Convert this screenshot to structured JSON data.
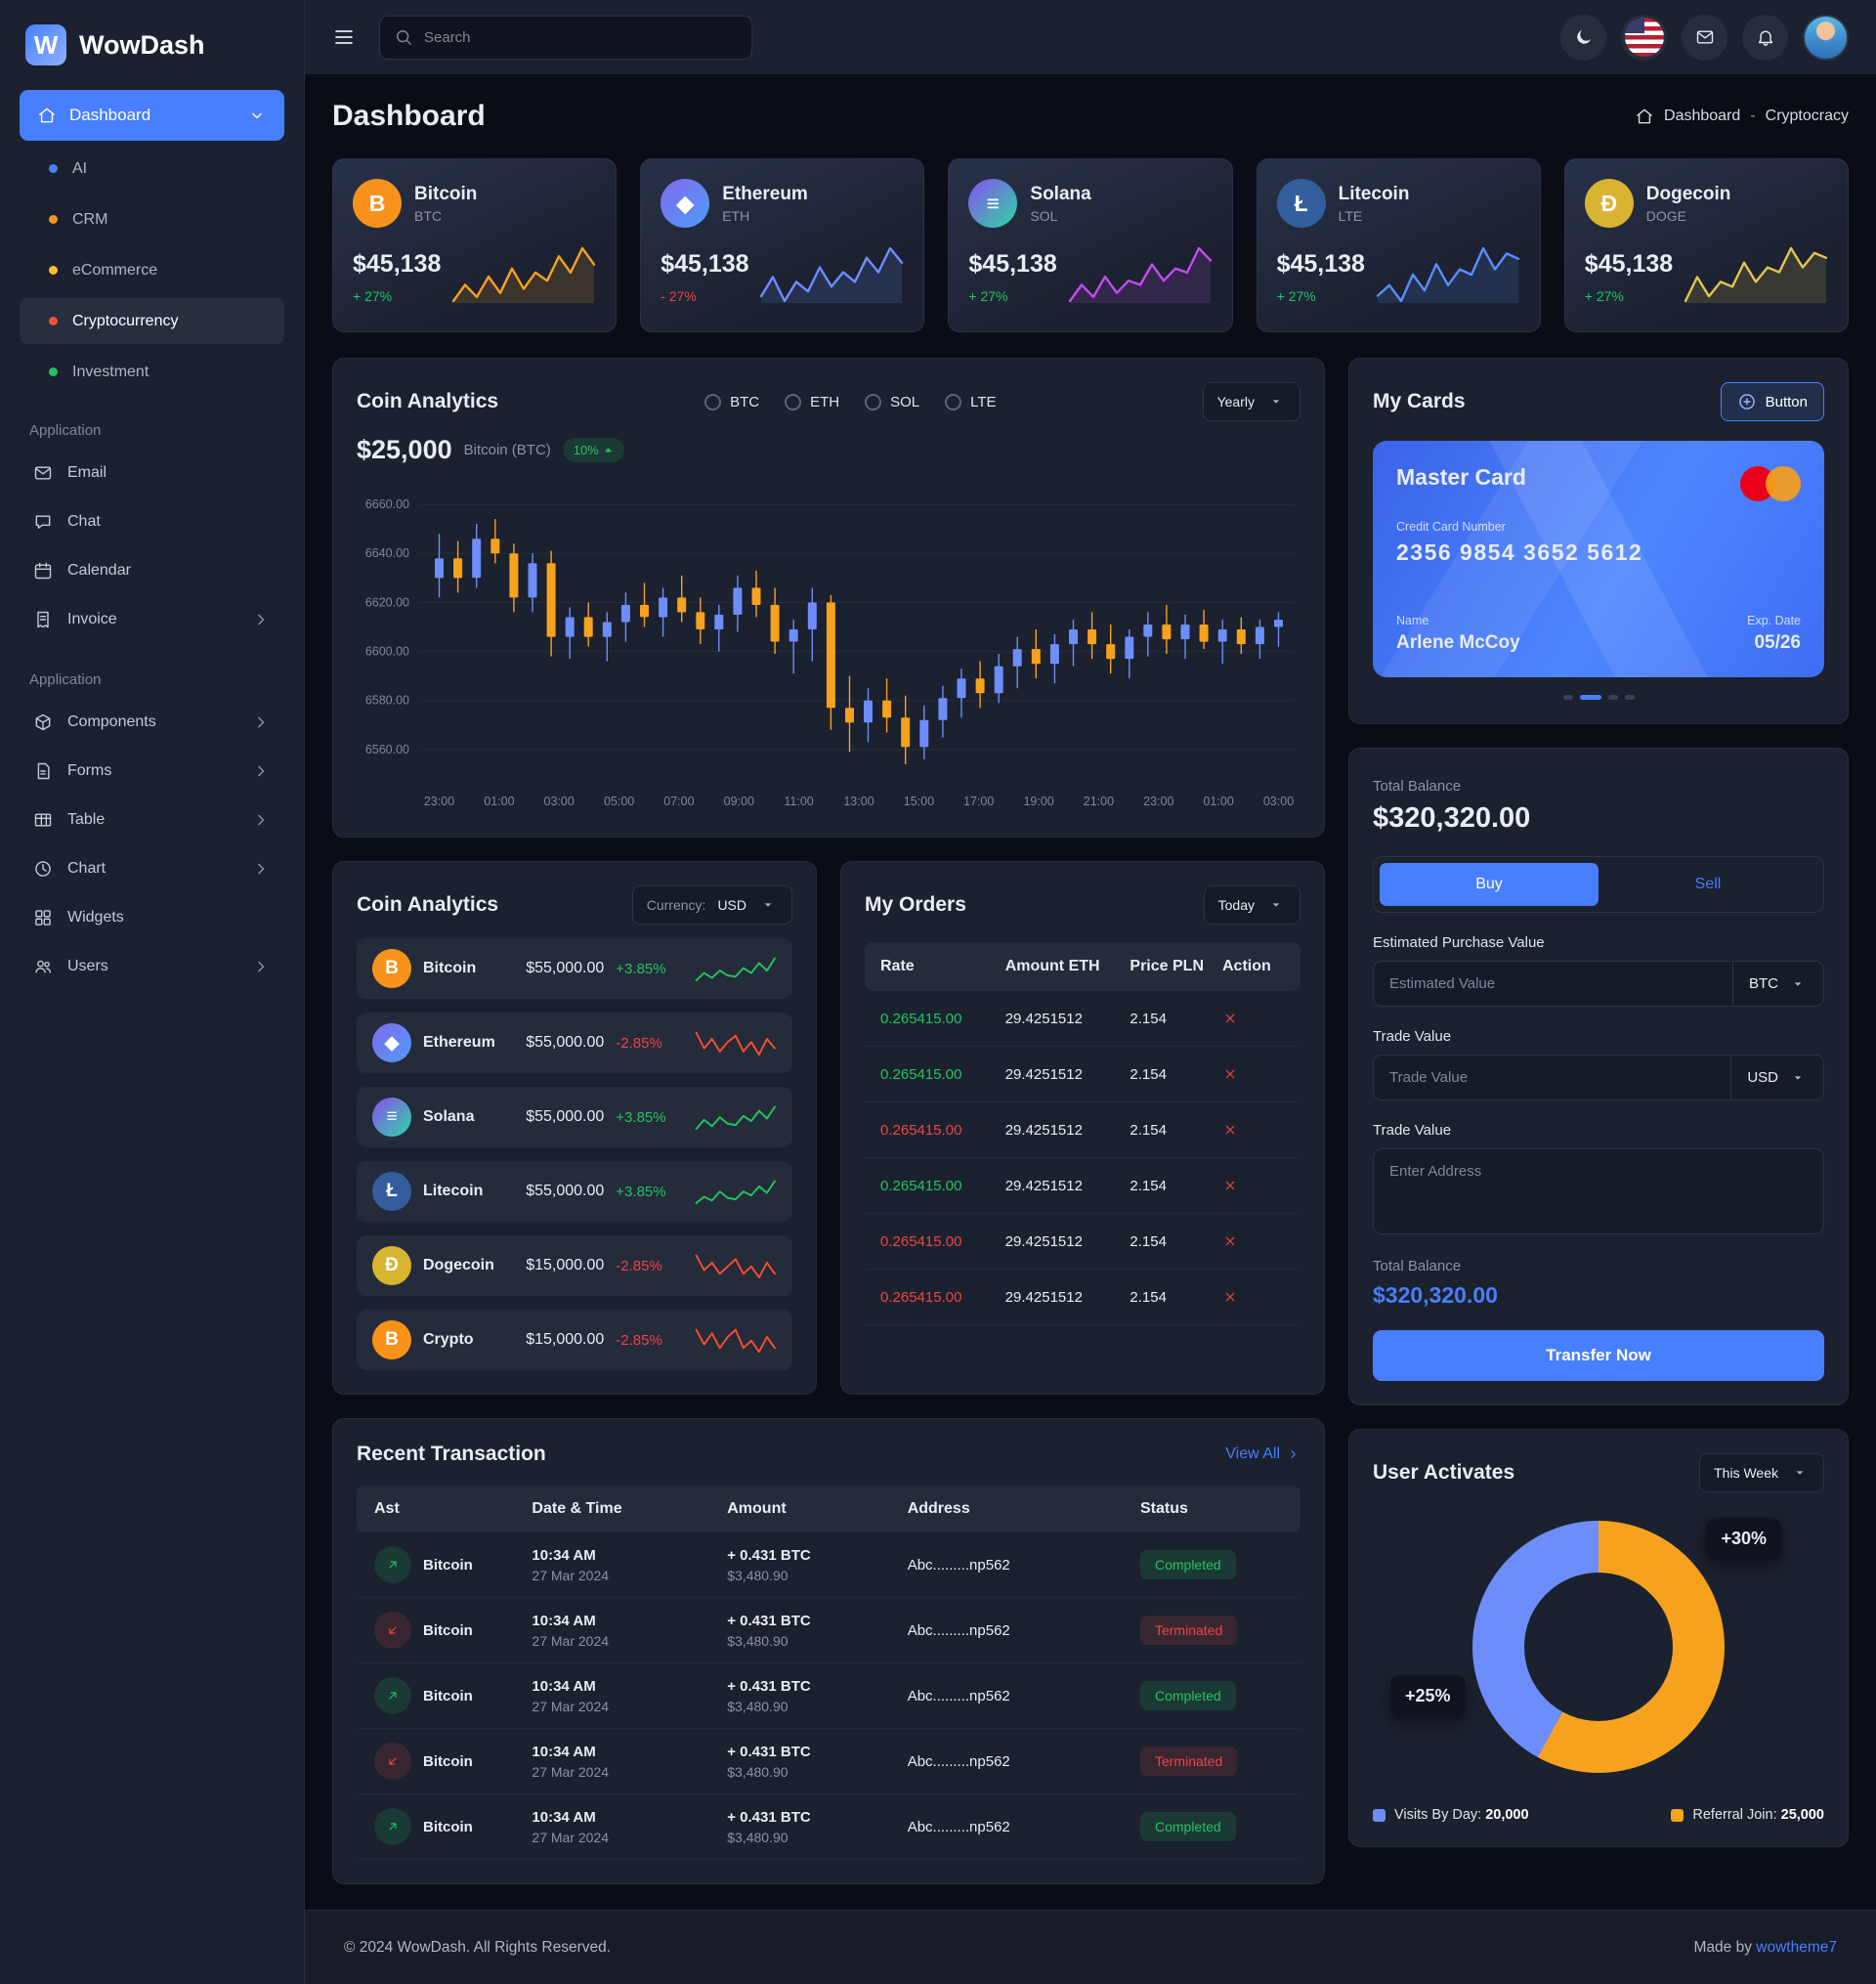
{
  "brand": {
    "name": "WowDash"
  },
  "topbar": {
    "search_placeholder": "Search"
  },
  "page": {
    "title": "Dashboard",
    "breadcrumb_root": "Dashboard",
    "breadcrumb_sep": "-",
    "breadcrumb_current": "Cryptocracy"
  },
  "sidebar": {
    "dashboard_label": "Dashboard",
    "dash_items": [
      {
        "label": "AI",
        "dot": "#487fff",
        "active": false
      },
      {
        "label": "CRM",
        "dot": "#f4941e",
        "active": false
      },
      {
        "label": "eCommerce",
        "dot": "#ffbf2e",
        "active": false
      },
      {
        "label": "Cryptocurrency",
        "dot": "#ff4f2e",
        "active": true
      },
      {
        "label": "Investment",
        "dot": "#22c55e",
        "active": false
      }
    ],
    "sections": [
      {
        "title": "Application",
        "items": [
          {
            "label": "Email",
            "icon": "mail",
            "chevron": false
          },
          {
            "label": "Chat",
            "icon": "chat",
            "chevron": false
          },
          {
            "label": "Calendar",
            "icon": "calendar",
            "chevron": false
          },
          {
            "label": "Invoice",
            "icon": "invoice",
            "chevron": true
          }
        ]
      },
      {
        "title": "Application",
        "items": [
          {
            "label": "Components",
            "icon": "components",
            "chevron": true
          },
          {
            "label": "Forms",
            "icon": "forms",
            "chevron": true
          },
          {
            "label": "Table",
            "icon": "table",
            "chevron": true
          },
          {
            "label": "Chart",
            "icon": "chart",
            "chevron": true
          },
          {
            "label": "Widgets",
            "icon": "widgets",
            "chevron": false
          },
          {
            "label": "Users",
            "icon": "users",
            "chevron": true
          }
        ]
      }
    ]
  },
  "crypto_cards": [
    {
      "name": "Bitcoin",
      "symbol": "BTC",
      "price": "$45,138",
      "change": "+ 27%",
      "up": true,
      "glyph": "B",
      "bg": "#f7931a",
      "line": "#f6a21e",
      "spark": [
        12,
        20,
        14,
        24,
        16,
        28,
        18,
        26,
        22,
        34,
        26,
        38,
        30
      ]
    },
    {
      "name": "Ethereum",
      "symbol": "ETH",
      "price": "$45,138",
      "change": "- 27%",
      "up": false,
      "glyph": "◆",
      "bg": "linear-gradient(135deg,#8268f0,#4d9df5)",
      "line": "#6e8dff",
      "spark": [
        14,
        22,
        12,
        20,
        16,
        26,
        18,
        24,
        20,
        30,
        24,
        34,
        28
      ]
    },
    {
      "name": "Solana",
      "symbol": "SOL",
      "price": "$45,138",
      "change": "+ 27%",
      "up": true,
      "glyph": "≡",
      "bg": "linear-gradient(135deg,#8a4df0,#2bd9a2)",
      "line": "#c44df0",
      "spark": [
        10,
        18,
        12,
        22,
        14,
        20,
        18,
        28,
        20,
        26,
        24,
        36,
        30
      ]
    },
    {
      "name": "Litecoin",
      "symbol": "LTE",
      "price": "$45,138",
      "change": "+ 27%",
      "up": true,
      "glyph": "Ł",
      "bg": "#345d9d",
      "line": "#5a8dff",
      "spark": [
        12,
        16,
        10,
        20,
        14,
        24,
        16,
        22,
        20,
        30,
        22,
        28,
        26
      ]
    },
    {
      "name": "Dogecoin",
      "symbol": "DOGE",
      "price": "$45,138",
      "change": "+ 27%",
      "up": true,
      "glyph": "Ð",
      "bg": "#d9b430",
      "line": "#e3c54e",
      "spark": [
        10,
        20,
        12,
        18,
        16,
        26,
        18,
        24,
        22,
        32,
        24,
        30,
        28
      ]
    }
  ],
  "coin_chart": {
    "title": "Coin Analytics",
    "price": "$25,000",
    "price_label": "Bitcoin (BTC)",
    "badge": "10%",
    "radios": [
      "BTC",
      "ETH",
      "SOL",
      "LTE"
    ],
    "range_select": "Yearly",
    "y_ticks": [
      "6660.00",
      "6640.00",
      "6620.00",
      "6600.00",
      "6580.00",
      "6560.00"
    ],
    "x_ticks": [
      "23:00",
      "01:00",
      "03:00",
      "05:00",
      "07:00",
      "09:00",
      "11:00",
      "13:00",
      "15:00",
      "17:00",
      "19:00",
      "21:00",
      "23:00",
      "01:00",
      "03:00"
    ],
    "y_min": 6550,
    "y_max": 6668,
    "up_color": "#6d8dfa",
    "down_color": "#f6a21e",
    "candles": [
      [
        6630,
        6648,
        6622,
        6638
      ],
      [
        6638,
        6645,
        6624,
        6630
      ],
      [
        6630,
        6652,
        6626,
        6646
      ],
      [
        6646,
        6654,
        6636,
        6640
      ],
      [
        6640,
        6644,
        6616,
        6622
      ],
      [
        6622,
        6640,
        6616,
        6636
      ],
      [
        6636,
        6641,
        6598,
        6606
      ],
      [
        6606,
        6618,
        6597,
        6614
      ],
      [
        6614,
        6620,
        6602,
        6606
      ],
      [
        6606,
        6616,
        6596,
        6612
      ],
      [
        6612,
        6624,
        6604,
        6619
      ],
      [
        6619,
        6628,
        6610,
        6614
      ],
      [
        6614,
        6626,
        6606,
        6622
      ],
      [
        6622,
        6631,
        6612,
        6616
      ],
      [
        6616,
        6622,
        6603,
        6609
      ],
      [
        6609,
        6619,
        6600,
        6615
      ],
      [
        6615,
        6631,
        6608,
        6626
      ],
      [
        6626,
        6633,
        6614,
        6619
      ],
      [
        6619,
        6626,
        6599,
        6604
      ],
      [
        6604,
        6613,
        6591,
        6609
      ],
      [
        6609,
        6626,
        6596,
        6620
      ],
      [
        6620,
        6623,
        6568,
        6577
      ],
      [
        6577,
        6590,
        6559,
        6571
      ],
      [
        6571,
        6585,
        6563,
        6580
      ],
      [
        6580,
        6589,
        6567,
        6573
      ],
      [
        6573,
        6582,
        6554,
        6561
      ],
      [
        6561,
        6578,
        6556,
        6572
      ],
      [
        6572,
        6586,
        6565,
        6581
      ],
      [
        6581,
        6593,
        6573,
        6589
      ],
      [
        6589,
        6596,
        6577,
        6583
      ],
      [
        6583,
        6599,
        6579,
        6594
      ],
      [
        6594,
        6606,
        6585,
        6601
      ],
      [
        6601,
        6609,
        6589,
        6595
      ],
      [
        6595,
        6607,
        6587,
        6603
      ],
      [
        6603,
        6613,
        6594,
        6609
      ],
      [
        6609,
        6616,
        6597,
        6603
      ],
      [
        6603,
        6611,
        6591,
        6597
      ],
      [
        6597,
        6609,
        6589,
        6606
      ],
      [
        6606,
        6616,
        6598,
        6611
      ],
      [
        6611,
        6619,
        6599,
        6605
      ],
      [
        6605,
        6615,
        6597,
        6611
      ],
      [
        6611,
        6617,
        6601,
        6604
      ],
      [
        6604,
        6613,
        6595,
        6609
      ],
      [
        6609,
        6614,
        6599,
        6603
      ],
      [
        6603,
        6613,
        6597,
        6610
      ],
      [
        6610,
        6616,
        6602,
        6613
      ]
    ]
  },
  "coin_list": {
    "title": "Coin Analytics",
    "currency_label": "Currency:",
    "currency": "USD",
    "rows": [
      {
        "name": "Bitcoin",
        "price": "$55,000.00",
        "change": "+3.85%",
        "up": true,
        "glyph": "B",
        "bg": "#f7931a",
        "spark": [
          4,
          10,
          6,
          12,
          8,
          7,
          14,
          10,
          18,
          12,
          22
        ]
      },
      {
        "name": "Ethereum",
        "price": "$55,000.00",
        "change": "-2.85%",
        "up": false,
        "glyph": "◆",
        "bg": "linear-gradient(135deg,#8268f0,#4d9df5)",
        "spark": [
          18,
          8,
          14,
          6,
          12,
          16,
          6,
          12,
          4,
          14,
          8
        ]
      },
      {
        "name": "Solana",
        "price": "$55,000.00",
        "change": "+3.85%",
        "up": true,
        "glyph": "≡",
        "bg": "linear-gradient(135deg,#8a4df0,#2bd9a2)",
        "spark": [
          5,
          12,
          7,
          14,
          9,
          8,
          15,
          11,
          19,
          13,
          22
        ]
      },
      {
        "name": "Litecoin",
        "price": "$55,000.00",
        "change": "+3.85%",
        "up": true,
        "glyph": "Ł",
        "bg": "#345d9d",
        "spark": [
          4,
          9,
          6,
          13,
          8,
          7,
          13,
          10,
          17,
          12,
          21
        ]
      },
      {
        "name": "Dogecoin",
        "price": "$15,000.00",
        "change": "-2.85%",
        "up": false,
        "glyph": "Ð",
        "bg": "#d9b430",
        "spark": [
          17,
          9,
          13,
          7,
          11,
          15,
          7,
          11,
          5,
          13,
          7
        ]
      },
      {
        "name": "Crypto",
        "price": "$15,000.00",
        "change": "-2.85%",
        "up": false,
        "glyph": "B",
        "bg": "#f7931a",
        "spark": [
          16,
          8,
          14,
          6,
          12,
          16,
          6,
          10,
          4,
          12,
          6
        ]
      }
    ]
  },
  "orders": {
    "title": "My Orders",
    "range_select": "Today",
    "columns": [
      "Rate",
      "Amount ETH",
      "Price PLN",
      "Action"
    ],
    "rows": [
      {
        "rate": "0.265415.00",
        "up": true,
        "amount": "29.4251512",
        "price": "2.154"
      },
      {
        "rate": "0.265415.00",
        "up": true,
        "amount": "29.4251512",
        "price": "2.154"
      },
      {
        "rate": "0.265415.00",
        "up": false,
        "amount": "29.4251512",
        "price": "2.154"
      },
      {
        "rate": "0.265415.00",
        "up": true,
        "amount": "29.4251512",
        "price": "2.154"
      },
      {
        "rate": "0.265415.00",
        "up": false,
        "amount": "29.4251512",
        "price": "2.154"
      },
      {
        "rate": "0.265415.00",
        "up": false,
        "amount": "29.4251512",
        "price": "2.154"
      }
    ]
  },
  "transactions": {
    "title": "Recent Transaction",
    "view_all": "View All",
    "columns": [
      "Ast",
      "Date & Time",
      "Amount",
      "Address",
      "Status"
    ],
    "rows": [
      {
        "asset": "Bitcoin",
        "time": "10:34 AM",
        "date": "27 Mar 2024",
        "amount": "+ 0.431 BTC",
        "fiat": "$3,480.90",
        "address": "Abc.........np562",
        "status": "Completed",
        "up": true
      },
      {
        "asset": "Bitcoin",
        "time": "10:34 AM",
        "date": "27 Mar 2024",
        "amount": "+ 0.431 BTC",
        "fiat": "$3,480.90",
        "address": "Abc.........np562",
        "status": "Terminated",
        "up": false
      },
      {
        "asset": "Bitcoin",
        "time": "10:34 AM",
        "date": "27 Mar 2024",
        "amount": "+ 0.431 BTC",
        "fiat": "$3,480.90",
        "address": "Abc.........np562",
        "status": "Completed",
        "up": true
      },
      {
        "asset": "Bitcoin",
        "time": "10:34 AM",
        "date": "27 Mar 2024",
        "amount": "+ 0.431 BTC",
        "fiat": "$3,480.90",
        "address": "Abc.........np562",
        "status": "Terminated",
        "up": false
      },
      {
        "asset": "Bitcoin",
        "time": "10:34 AM",
        "date": "27 Mar 2024",
        "amount": "+ 0.431 BTC",
        "fiat": "$3,480.90",
        "address": "Abc.........np562",
        "status": "Completed",
        "up": true
      }
    ]
  },
  "my_cards": {
    "title": "My Cards",
    "button": "Button",
    "card": {
      "brand": "Master Card",
      "number_label": "Credit Card Number",
      "number": "2356 9854 3652 5612",
      "name_label": "Name",
      "name": "Arlene McCoy",
      "exp_label": "Exp. Date",
      "exp": "05/26"
    }
  },
  "balance": {
    "label": "Total Balance",
    "value": "$320,320.00",
    "tab_buy": "Buy",
    "tab_sell": "Sell",
    "field1_label": "Estimated Purchase Value",
    "field1_placeholder": "Estimated Value",
    "field1_select": "BTC",
    "field2_label": "Trade Value",
    "field2_placeholder": "Trade Value",
    "field2_select": "USD",
    "address_label": "Trade Value",
    "address_placeholder": "Enter Address",
    "total_label": "Total Balance",
    "total_value": "$320,320.00",
    "submit": "Transfer Now"
  },
  "user_activates": {
    "title": "User Activates",
    "range_select": "This Week",
    "badge_top": "+30%",
    "badge_left": "+25%",
    "donut": {
      "orange": "#f6a21e",
      "blue": "#6d8dfa",
      "orange_pct": 58
    },
    "legend": [
      {
        "label": "Visits By Day:",
        "value": "20,000",
        "color": "#6d8dfa"
      },
      {
        "label": "Referral Join:",
        "value": "25,000",
        "color": "#f6a21e"
      }
    ]
  },
  "footer": {
    "copyright": "© 2024 WowDash. All Rights Reserved.",
    "made_by": "Made by",
    "made_by_link": "wowtheme7"
  }
}
